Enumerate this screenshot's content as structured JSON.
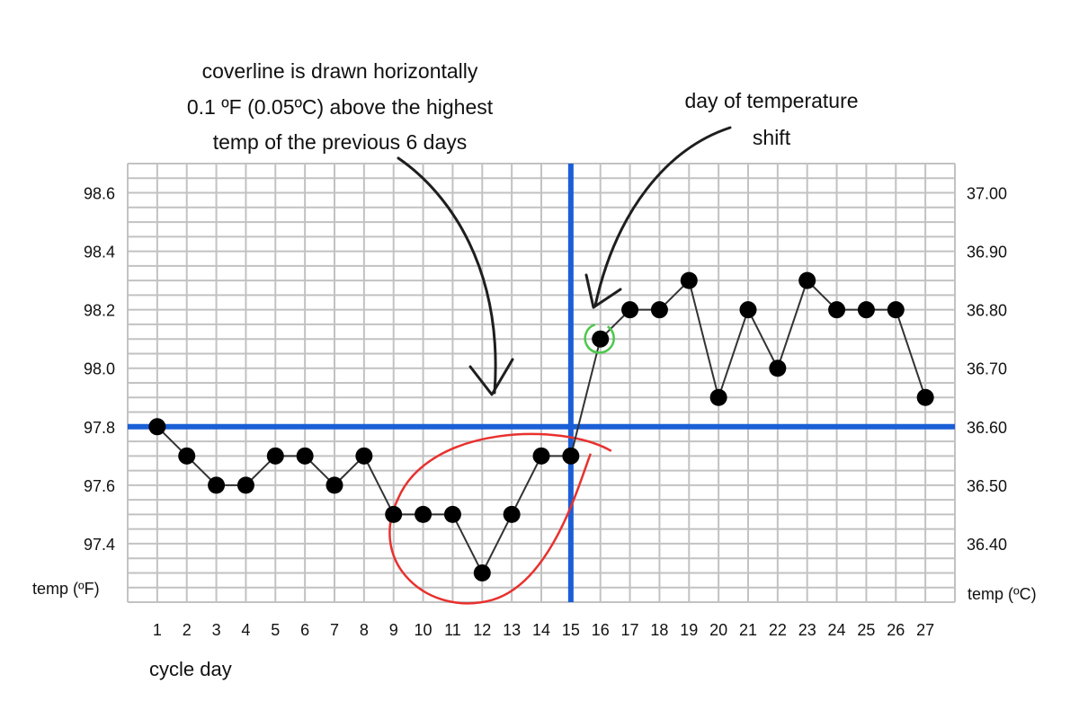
{
  "chart_data": {
    "type": "line",
    "title": "",
    "xlabel": "cycle day",
    "ylabel_left": "temp (ºF)",
    "ylabel_right": "temp (ºC)",
    "x": [
      1,
      2,
      3,
      4,
      5,
      6,
      7,
      8,
      9,
      10,
      11,
      12,
      13,
      14,
      15,
      16,
      17,
      18,
      19,
      20,
      21,
      22,
      23,
      24,
      25,
      26,
      27
    ],
    "series": [
      {
        "values": [
          97.8,
          97.7,
          97.6,
          97.6,
          97.7,
          97.7,
          97.6,
          97.7,
          97.5,
          97.5,
          97.5,
          97.3,
          97.5,
          97.7,
          97.7,
          98.1,
          98.2,
          98.2,
          98.3,
          97.9,
          98.2,
          98.0,
          98.3,
          98.2,
          98.2,
          98.2,
          97.9
        ]
      }
    ],
    "ylim": [
      97.2,
      98.7
    ],
    "yticks_left": [
      "98.6",
      "98.4",
      "98.2",
      "98.0",
      "97.8",
      "97.6",
      "97.4"
    ],
    "yticks_left_values": [
      98.6,
      98.4,
      98.2,
      98.0,
      97.8,
      97.6,
      97.4
    ],
    "yticks_right": [
      "37.00",
      "36.90",
      "36.80",
      "36.70",
      "36.60",
      "36.50",
      "36.40"
    ],
    "grid": true,
    "coverline_f": 97.8,
    "shift_day": 15,
    "highlight_day": 16,
    "low_region_days": [
      9,
      15
    ],
    "annotations": [
      {
        "name": "coverline-note",
        "lines": [
          "coverline is drawn horizontally",
          "0.1 ºF (0.05ºC) above the highest",
          "temp of the previous 6 days"
        ]
      },
      {
        "name": "shift-note",
        "lines": [
          "day of temperature",
          "shift"
        ]
      }
    ],
    "colors": {
      "grid": "#c2c2c2",
      "marker": "#000000",
      "line": "#333333",
      "coverline": "#1a5fd6",
      "highlight": "#4cc94c",
      "circle": "#e8312f",
      "arrow": "#1e1e1e"
    }
  }
}
